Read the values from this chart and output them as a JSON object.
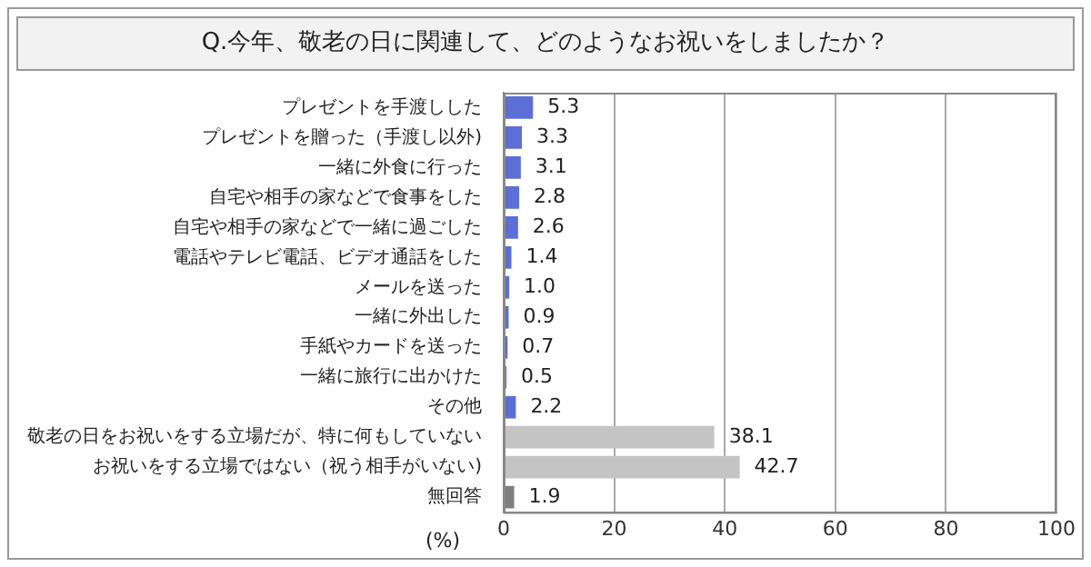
{
  "chart_data": {
    "type": "bar",
    "orientation": "horizontal",
    "title": "Q.今年、敬老の日に関連して、どのようなお祝いをしましたか？",
    "xlabel": "(%)",
    "categories": [
      "プレゼントを手渡しした",
      "プレゼントを贈った（手渡し以外)",
      "一緒に外食に行った",
      "自宅や相手の家などで食事をした",
      "自宅や相手の家などで一緒に過ごした",
      "電話やテレビ電話、ビデオ通話をした",
      "メールを送った",
      "一緒に外出した",
      "手紙やカードを送った",
      "一緒に旅行に出かけた",
      "その他",
      "敬老の日をお祝いをする立場だが、特に何もしていない",
      "お祝いをする立場ではない（祝う相手がいない)",
      "無回答"
    ],
    "values": [
      5.3,
      3.3,
      3.1,
      2.8,
      2.6,
      1.4,
      1.0,
      0.9,
      0.7,
      0.5,
      2.2,
      38.1,
      42.7,
      1.9
    ],
    "value_labels": [
      "5.3",
      "3.3",
      "3.1",
      "2.8",
      "2.6",
      "1.4",
      "1.0",
      "0.9",
      "0.7",
      "0.5",
      "2.2",
      "38.1",
      "42.7",
      "1.9"
    ],
    "colors": [
      "#5b6fd6",
      "#5b6fd6",
      "#5b6fd6",
      "#5b6fd6",
      "#5b6fd6",
      "#5b6fd6",
      "#5b6fd6",
      "#5b6fd6",
      "#5b6fd6",
      "#5b6fd6",
      "#5b6fd6",
      "#c4c4c4",
      "#c4c4c4",
      "#7f7f7f"
    ],
    "xlim": [
      0,
      100
    ],
    "xticks": [
      0,
      20,
      40,
      60,
      80,
      100
    ],
    "grid": "x",
    "legend": false
  }
}
